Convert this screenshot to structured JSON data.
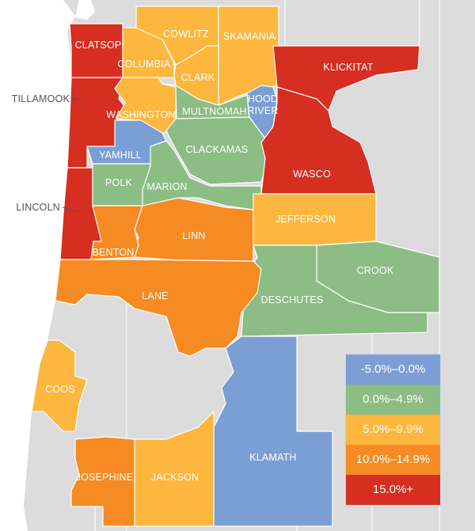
{
  "colors": {
    "bin_0": "#7b9fd4",
    "bin_1": "#8bbd84",
    "bin_2": "#fdb73e",
    "bin_3": "#f58b22",
    "bin_4": "#d62e20",
    "no_data": "#dcdcdc",
    "water": "#ffffff"
  },
  "legend": [
    {
      "label": "-5.0%–0.0%",
      "bin": 0
    },
    {
      "label": "0.0%–4.9%",
      "bin": 1
    },
    {
      "label": "5.0%–9.9%",
      "bin": 2
    },
    {
      "label": "10.0%–14.9%",
      "bin": 3
    },
    {
      "label": "15.0%+",
      "bin": 4
    }
  ],
  "counties": [
    {
      "name": "CLATSOP",
      "bin": 4
    },
    {
      "name": "TILLAMOOK",
      "bin": 4
    },
    {
      "name": "LINCOLN",
      "bin": 4
    },
    {
      "name": "COLUMBIA",
      "bin": 2
    },
    {
      "name": "COWLITZ",
      "bin": 2
    },
    {
      "name": "SKAMANIA",
      "bin": 2
    },
    {
      "name": "CLARK",
      "bin": 2
    },
    {
      "name": "WASHINGTON",
      "bin": 2
    },
    {
      "name": "MULTNOMAH",
      "bin": 1
    },
    {
      "name": "HOOD RIVER",
      "bin": 0
    },
    {
      "name": "YAMHILL",
      "bin": 0
    },
    {
      "name": "POLK",
      "bin": 1
    },
    {
      "name": "MARION",
      "bin": 1
    },
    {
      "name": "CLACKAMAS",
      "bin": 1
    },
    {
      "name": "KLICKITAT",
      "bin": 4
    },
    {
      "name": "WASCO",
      "bin": 4
    },
    {
      "name": "JEFFERSON",
      "bin": 2
    },
    {
      "name": "CROOK",
      "bin": 1
    },
    {
      "name": "DESCHUTES",
      "bin": 1
    },
    {
      "name": "LINN",
      "bin": 3
    },
    {
      "name": "BENTON",
      "bin": 3
    },
    {
      "name": "LANE",
      "bin": 3
    },
    {
      "name": "COOS",
      "bin": 2
    },
    {
      "name": "KLAMATH",
      "bin": 0
    },
    {
      "name": "JACKSON",
      "bin": 2
    },
    {
      "name": "JOSEPHINE",
      "bin": 3
    }
  ]
}
